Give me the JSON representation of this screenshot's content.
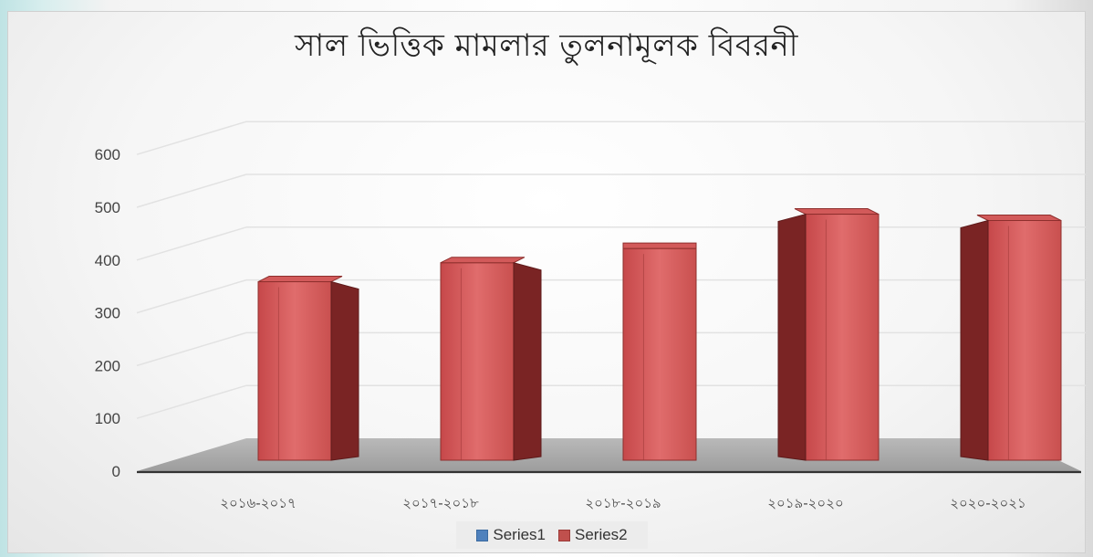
{
  "chart_data": {
    "type": "bar",
    "title": "সাল ভিত্তিক মামলার তুলনামূলক বিবরনী",
    "categories": [
      "২০১৬-২০১৭",
      "২০১৭-২০১৮",
      "২০১৮-২০১৯",
      "২০১৯-২০২০",
      "২০২০-২০২১"
    ],
    "series": [
      {
        "name": "Series1",
        "values": [
          0,
          0,
          0,
          0,
          0
        ],
        "color": "#4f81bd"
      },
      {
        "name": "Series2",
        "values": [
          352,
          388,
          415,
          480,
          468
        ],
        "color": "#c0504d"
      }
    ],
    "yticks": [
      "0",
      "100",
      "200",
      "300",
      "400",
      "500",
      "600"
    ],
    "ylim": [
      0,
      600
    ],
    "grid": true,
    "legend_position": "bottom"
  }
}
